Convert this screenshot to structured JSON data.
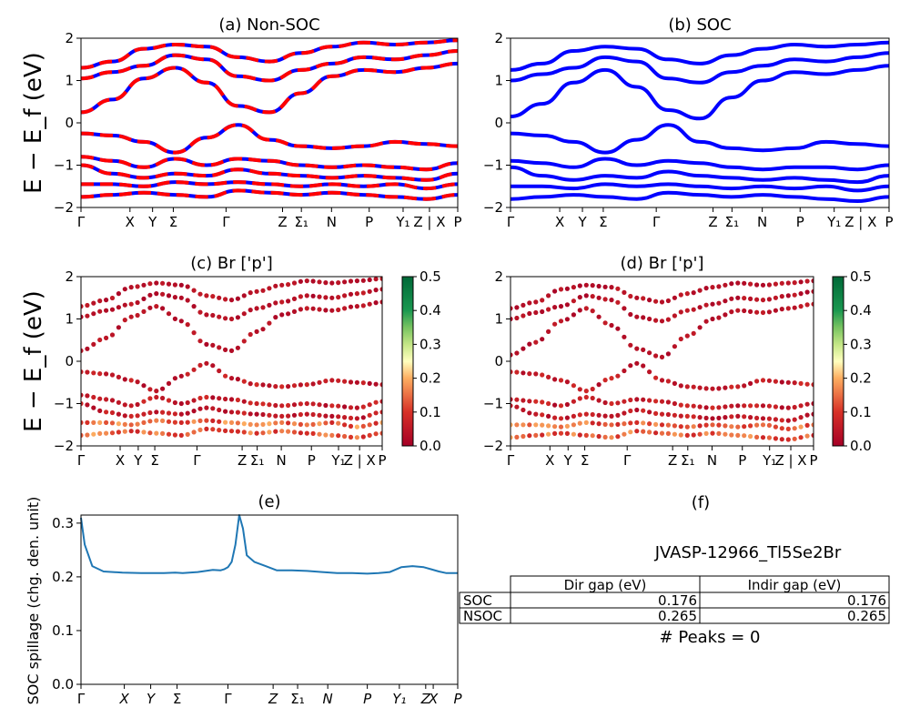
{
  "chart_data": [
    {
      "type": "line",
      "panel": "a",
      "title": "(a) Non-SOC",
      "ylabel": "E − E_f (eV)",
      "ylim": [
        -2,
        2
      ],
      "yticks": [
        "2",
        "1",
        "0",
        "−1",
        "−2"
      ],
      "kpath_labels": [
        "Γ",
        "X",
        "Y",
        "Σ",
        "Γ",
        "Z",
        "Σ₁",
        "N",
        "P",
        "Y₁",
        "Z | X",
        "P"
      ],
      "series": [
        {
          "values": [
            0.25,
            0.55,
            1.05,
            1.3,
            0.95,
            0.4,
            0.25,
            0.7,
            1.1,
            1.25,
            1.2,
            1.3,
            1.4
          ]
        },
        {
          "values": [
            1.05,
            1.2,
            1.35,
            1.6,
            1.5,
            1.1,
            1.0,
            1.25,
            1.4,
            1.55,
            1.5,
            1.6,
            1.7
          ]
        },
        {
          "values": [
            1.3,
            1.45,
            1.75,
            1.85,
            1.8,
            1.55,
            1.45,
            1.65,
            1.8,
            1.9,
            1.85,
            1.9,
            1.95
          ]
        },
        {
          "values": [
            -0.25,
            -0.3,
            -0.45,
            -0.7,
            -0.35,
            -0.05,
            -0.4,
            -0.55,
            -0.6,
            -0.55,
            -0.45,
            -0.5,
            -0.55
          ]
        },
        {
          "values": [
            -0.8,
            -0.9,
            -1.05,
            -0.85,
            -1.0,
            -0.85,
            -0.9,
            -1.0,
            -1.05,
            -1.0,
            -1.05,
            -1.1,
            -0.95
          ]
        },
        {
          "values": [
            -1.0,
            -1.2,
            -1.3,
            -1.2,
            -1.25,
            -1.1,
            -1.2,
            -1.25,
            -1.3,
            -1.25,
            -1.3,
            -1.35,
            -1.2
          ]
        },
        {
          "values": [
            -1.45,
            -1.45,
            -1.5,
            -1.4,
            -1.45,
            -1.4,
            -1.45,
            -1.5,
            -1.45,
            -1.5,
            -1.45,
            -1.55,
            -1.45
          ]
        },
        {
          "values": [
            -1.75,
            -1.7,
            -1.65,
            -1.7,
            -1.75,
            -1.6,
            -1.65,
            -1.7,
            -1.65,
            -1.7,
            -1.75,
            -1.8,
            -1.7
          ]
        }
      ]
    },
    {
      "type": "line",
      "panel": "b",
      "title": "(b) SOC",
      "ylim": [
        -2,
        2
      ],
      "yticks": [
        "2",
        "1",
        "0",
        "−1",
        "−2"
      ],
      "kpath_labels": [
        "Γ",
        "X",
        "Y",
        "Σ",
        "Γ",
        "Z",
        "Σ₁",
        "N",
        "P",
        "Y₁",
        "Z | X",
        "P"
      ],
      "series": [
        {
          "values": [
            0.15,
            0.45,
            0.95,
            1.25,
            0.85,
            0.3,
            0.1,
            0.6,
            1.0,
            1.2,
            1.15,
            1.25,
            1.35
          ]
        },
        {
          "values": [
            1.0,
            1.15,
            1.3,
            1.55,
            1.45,
            1.05,
            0.95,
            1.2,
            1.35,
            1.5,
            1.45,
            1.55,
            1.65
          ]
        },
        {
          "values": [
            1.25,
            1.4,
            1.7,
            1.8,
            1.75,
            1.5,
            1.4,
            1.6,
            1.75,
            1.85,
            1.8,
            1.85,
            1.9
          ]
        },
        {
          "values": [
            -0.25,
            -0.3,
            -0.45,
            -0.7,
            -0.4,
            -0.05,
            -0.45,
            -0.6,
            -0.65,
            -0.6,
            -0.45,
            -0.5,
            -0.55
          ]
        },
        {
          "values": [
            -0.9,
            -0.95,
            -1.05,
            -0.85,
            -1.0,
            -0.9,
            -0.95,
            -1.05,
            -1.1,
            -1.05,
            -1.05,
            -1.1,
            -1.0
          ]
        },
        {
          "values": [
            -1.05,
            -1.25,
            -1.35,
            -1.25,
            -1.3,
            -1.15,
            -1.25,
            -1.3,
            -1.35,
            -1.3,
            -1.35,
            -1.4,
            -1.25
          ]
        },
        {
          "values": [
            -1.5,
            -1.5,
            -1.55,
            -1.45,
            -1.5,
            -1.45,
            -1.5,
            -1.55,
            -1.5,
            -1.55,
            -1.5,
            -1.6,
            -1.5
          ]
        },
        {
          "values": [
            -1.8,
            -1.75,
            -1.7,
            -1.75,
            -1.8,
            -1.65,
            -1.7,
            -1.75,
            -1.7,
            -1.75,
            -1.8,
            -1.85,
            -1.75
          ]
        }
      ]
    },
    {
      "type": "scatter",
      "panel": "c",
      "title": "(c)  Br ['p']",
      "ylabel": "E − E_f (eV)",
      "ylim": [
        -2,
        2
      ],
      "yticks": [
        "2",
        "1",
        "0",
        "−1",
        "−2"
      ],
      "kpath_labels": [
        "Γ",
        "X",
        "Y",
        "Σ",
        "Γ",
        "Z",
        "Σ₁",
        "N",
        "P",
        "Y₁",
        "Z | X",
        "P"
      ],
      "colorbar": {
        "min": 0.0,
        "max": 0.5,
        "ticks": [
          "0.5",
          "0.4",
          "0.3",
          "0.2",
          "0.1",
          "0.0"
        ],
        "cmap": "RdYlGn"
      }
    },
    {
      "type": "scatter",
      "panel": "d",
      "title": "(d) Br ['p']",
      "ylim": [
        -2,
        2
      ],
      "yticks": [
        "2",
        "1",
        "0",
        "−1",
        "−2"
      ],
      "kpath_labels": [
        "Γ",
        "X",
        "Y",
        "Σ",
        "Γ",
        "Z",
        "Σ₁",
        "N",
        "P",
        "Y₁",
        "Z | X",
        "P"
      ],
      "colorbar": {
        "min": 0.0,
        "max": 0.5,
        "ticks": [
          "0.5",
          "0.4",
          "0.3",
          "0.2",
          "0.1",
          "0.0"
        ],
        "cmap": "RdYlGn"
      }
    },
    {
      "type": "line",
      "panel": "e",
      "title": "(e)",
      "ylabel": "SOC spillage (chg. den. unit)",
      "ylim": [
        0,
        0.315
      ],
      "yticks": [
        "0.3",
        "0.2",
        "0.1",
        "0.0"
      ],
      "kpath_labels": [
        "Γ",
        "X",
        "Y",
        "Σ",
        "Γ",
        "Z",
        "Σ₁",
        "N",
        "P",
        "Y₁",
        "Z",
        "X",
        "P"
      ],
      "x": [
        0.0,
        0.01,
        0.03,
        0.06,
        0.11,
        0.16,
        0.22,
        0.25,
        0.27,
        0.31,
        0.35,
        0.37,
        0.38,
        0.39,
        0.4,
        0.41,
        0.42,
        0.43,
        0.44,
        0.46,
        0.49,
        0.52,
        0.56,
        0.6,
        0.64,
        0.68,
        0.72,
        0.76,
        0.79,
        0.82,
        0.85,
        0.88,
        0.91,
        0.93,
        0.95,
        0.97,
        1.0
      ],
      "values": [
        0.31,
        0.26,
        0.22,
        0.21,
        0.208,
        0.207,
        0.207,
        0.208,
        0.207,
        0.209,
        0.213,
        0.212,
        0.214,
        0.218,
        0.228,
        0.26,
        0.315,
        0.29,
        0.24,
        0.228,
        0.22,
        0.212,
        0.212,
        0.211,
        0.209,
        0.207,
        0.207,
        0.206,
        0.207,
        0.209,
        0.218,
        0.22,
        0.218,
        0.214,
        0.21,
        0.207,
        0.207
      ]
    }
  ],
  "panel_f": {
    "title": "(f)",
    "subtitle": "JVASP-12966_Tl5Se2Br",
    "table": {
      "col_headers": [
        "Dir gap (eV)",
        "Indir gap (eV)"
      ],
      "rows": [
        {
          "label": "SOC",
          "dir": "0.176",
          "indir": "0.176"
        },
        {
          "label": "NSOC",
          "dir": "0.265",
          "indir": "0.265"
        }
      ]
    },
    "peaks": "# Peaks = 0"
  }
}
